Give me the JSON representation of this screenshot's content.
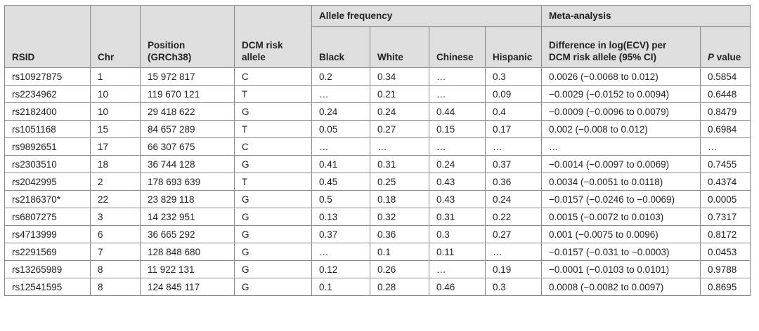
{
  "columns": {
    "rsid": "RSID",
    "chr": "Chr",
    "position_line1": "Position",
    "position_line2": "(GRCh38)",
    "risk_line1": "DCM risk",
    "risk_line2": "allele",
    "allele_frequency": "Allele frequency",
    "black": "Black",
    "white": "White",
    "chinese": "Chinese",
    "hispanic": "Hispanic",
    "meta_analysis": "Meta-analysis",
    "diff_line1": "Difference in log(ECV) per",
    "diff_line2": "DCM risk allele (95% CI)",
    "p_italic": "P",
    "p_rest": " value"
  },
  "rows": [
    {
      "rsid": "rs10927875",
      "chr": "1",
      "position": "15 972 817",
      "allele": "C",
      "black": "0.2",
      "white": "0.34",
      "chinese": "…",
      "hispanic": "0.3",
      "difference": "0.0026 (−0.0068 to 0.012)",
      "p": "0.5854"
    },
    {
      "rsid": "rs2234962",
      "chr": "10",
      "position": "119 670 121",
      "allele": "T",
      "black": "…",
      "white": "0.21",
      "chinese": "…",
      "hispanic": "0.09",
      "difference": "−0.0029 (−0.0152 to 0.0094)",
      "p": "0.6448"
    },
    {
      "rsid": "rs2182400",
      "chr": "10",
      "position": "29 418 622",
      "allele": "G",
      "black": "0.24",
      "white": "0.24",
      "chinese": "0.44",
      "hispanic": "0.4",
      "difference": "−0.0009 (−0.0096 to 0.0079)",
      "p": "0.8479"
    },
    {
      "rsid": "rs1051168",
      "chr": "15",
      "position": "84 657 289",
      "allele": "T",
      "black": "0.05",
      "white": "0.27",
      "chinese": "0.15",
      "hispanic": "0.17",
      "difference": "0.002 (−0.008 to 0.012)",
      "p": "0.6984"
    },
    {
      "rsid": "rs9892651",
      "chr": "17",
      "position": "66 307 675",
      "allele": "C",
      "black": "…",
      "white": "…",
      "chinese": "…",
      "hispanic": "…",
      "difference": "…",
      "p": "…"
    },
    {
      "rsid": "rs2303510",
      "chr": "18",
      "position": "36 744 128",
      "allele": "G",
      "black": "0.41",
      "white": "0.31",
      "chinese": "0.24",
      "hispanic": "0.37",
      "difference": "−0.0014 (−0.0097 to 0.0069)",
      "p": "0.7455"
    },
    {
      "rsid": "rs2042995",
      "chr": "2",
      "position": "178 693 639",
      "allele": "T",
      "black": "0.45",
      "white": "0.25",
      "chinese": "0.43",
      "hispanic": "0.36",
      "difference": "0.0034 (−0.0051 to 0.0118)",
      "p": "0.4374"
    },
    {
      "rsid": "rs2186370*",
      "chr": "22",
      "position": "23 829 118",
      "allele": "G",
      "black": "0.5",
      "white": "0.18",
      "chinese": "0.43",
      "hispanic": "0.24",
      "difference": "−0.0157 (−0.0246 to −0.0069)",
      "p": "0.0005"
    },
    {
      "rsid": "rs6807275",
      "chr": "3",
      "position": "14 232 951",
      "allele": "G",
      "black": "0.13",
      "white": "0.32",
      "chinese": "0.31",
      "hispanic": "0.22",
      "difference": "0.0015 (−0.0072 to 0.0103)",
      "p": "0.7317"
    },
    {
      "rsid": "rs4713999",
      "chr": "6",
      "position": "36 665 292",
      "allele": "G",
      "black": "0.37",
      "white": "0.36",
      "chinese": "0.3",
      "hispanic": "0.27",
      "difference": "0.001 (−0.0075 to 0.0096)",
      "p": "0.8172"
    },
    {
      "rsid": "rs2291569",
      "chr": "7",
      "position": "128 848 680",
      "allele": "G",
      "black": "…",
      "white": "0.1",
      "chinese": "0.11",
      "hispanic": "…",
      "difference": "−0.0157 (−0.031 to −0.0003)",
      "p": "0.0453"
    },
    {
      "rsid": "rs13265989",
      "chr": "8",
      "position": "11 922 131",
      "allele": "G",
      "black": "0.12",
      "white": "0.26",
      "chinese": "…",
      "hispanic": "0.19",
      "difference": "−0.0001 (−0.0103 to 0.0101)",
      "p": "0.9788"
    },
    {
      "rsid": "rs12541595",
      "chr": "8",
      "position": "124 845 117",
      "allele": "G",
      "black": "0.1",
      "white": "0.28",
      "chinese": "0.46",
      "hispanic": "0.3",
      "difference": "0.0008 (−0.0082 to 0.0097)",
      "p": "0.8695"
    }
  ]
}
